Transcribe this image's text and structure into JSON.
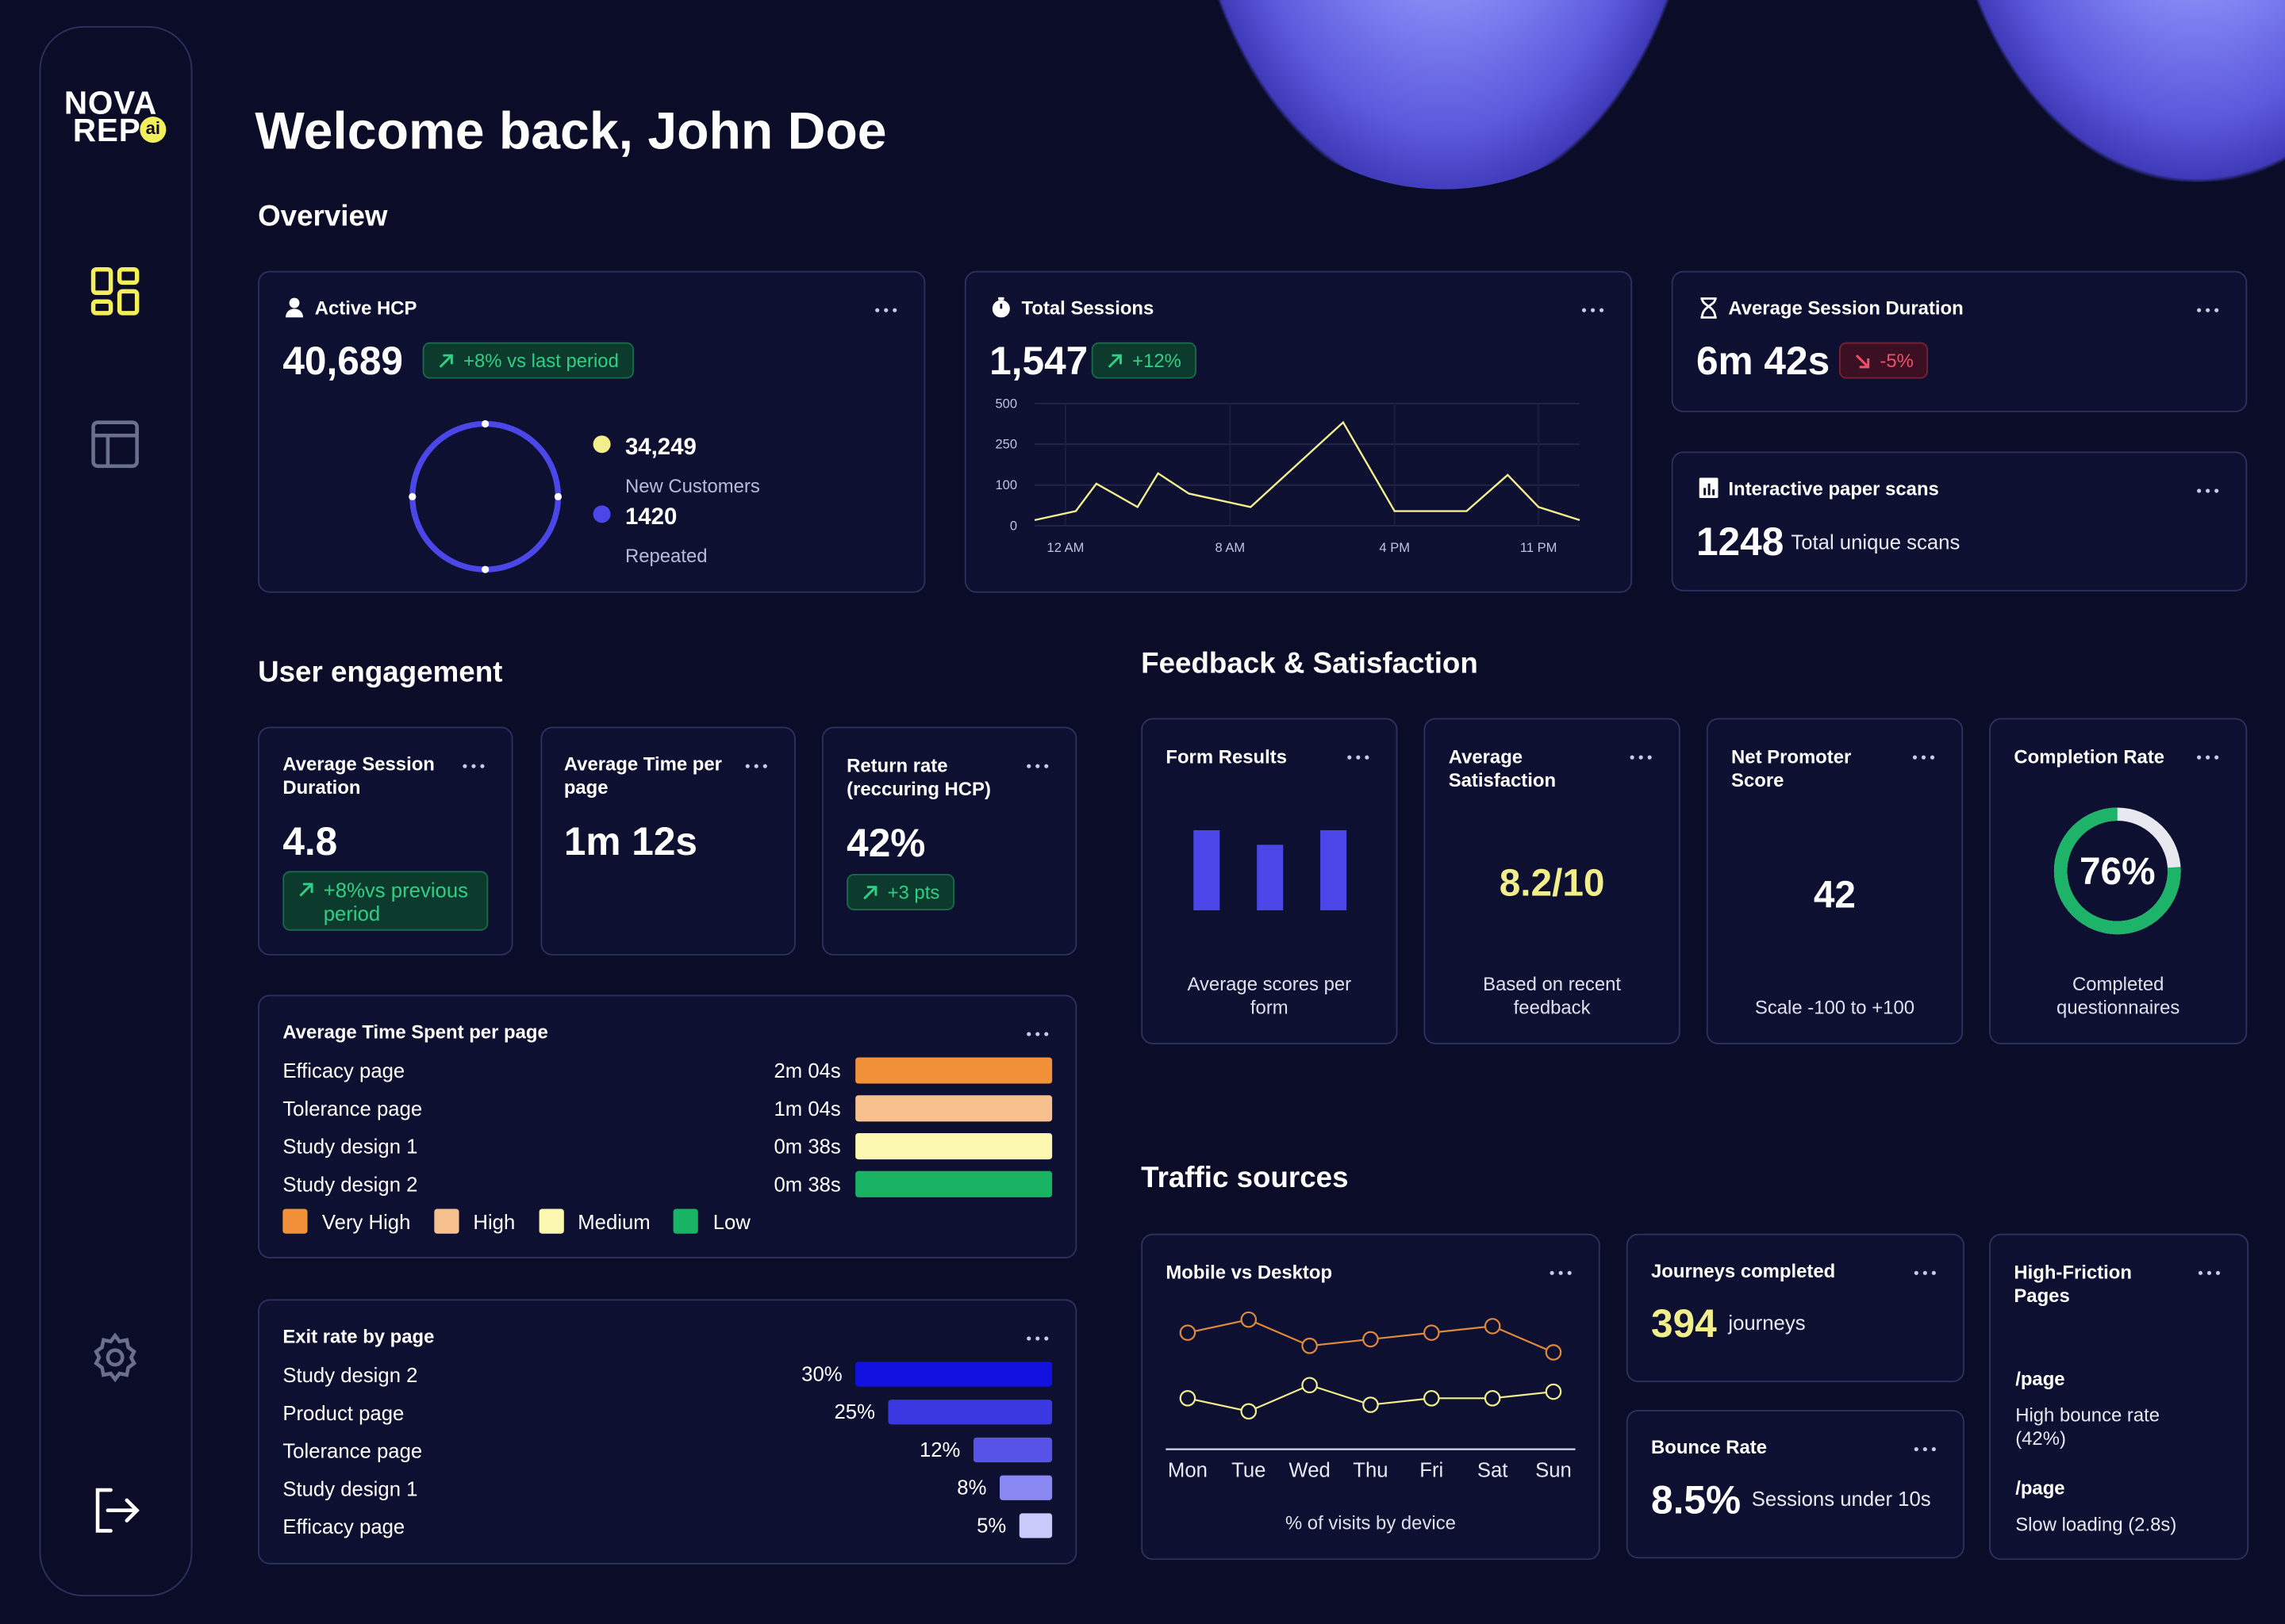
{
  "sidebar": {
    "logo_line1": "NOVA",
    "logo_line2": "REP",
    "logo_badge": "ai"
  },
  "header": {
    "title": "Welcome back, John Doe"
  },
  "overview": {
    "title": "Overview",
    "active_hcp": {
      "label": "Active HCP",
      "value": "40,689",
      "change": "+8% vs last period",
      "customers": [
        {
          "value": "34,249",
          "label": "New Customers",
          "color": "#f2ee8c"
        },
        {
          "value": "1420",
          "label": "Repeated",
          "color": "#4b46e8"
        }
      ]
    },
    "total_sessions": {
      "label": "Total Sessions",
      "value": "1,547",
      "change": "+12%",
      "chart_data": {
        "type": "line",
        "color": "#f2ee8c",
        "grid": true,
        "x": [
          -1.5,
          0.5,
          1.5,
          3.5,
          4.5,
          6,
          9,
          13.5,
          16,
          19.5,
          21.5,
          23,
          25
        ],
        "values": [
          14,
          36,
          105,
          46,
          143,
          79,
          46,
          384,
          36,
          36,
          137,
          46,
          14
        ],
        "xlim": [
          -1.5,
          25
        ],
        "xticks": [
          {
            "value": 0,
            "label": "12 AM"
          },
          {
            "value": 8,
            "label": "8 AM"
          },
          {
            "value": 16,
            "label": "4 PM"
          },
          {
            "value": 23,
            "label": "11 PM"
          }
        ],
        "ylim": [
          0,
          500
        ],
        "yticks": [
          0,
          100,
          250,
          500
        ]
      }
    },
    "avg_session_duration": {
      "label": "Average Session Duration",
      "value": "6m 42s",
      "change": "-5%"
    },
    "paper_scans": {
      "label": "Interactive paper scans",
      "value": "1248",
      "note": "Total unique scans"
    }
  },
  "engagement": {
    "title": "User engagement",
    "kpis": [
      {
        "label": "Average Session Duration",
        "value": "4.8",
        "change": "+8%vs previous period"
      },
      {
        "label": "Average Time per page",
        "value": "1m 12s"
      },
      {
        "label": "Return rate (reccuring HCP)",
        "value": "42%",
        "change": "+3 pts"
      }
    ],
    "time_spent": {
      "title": "Average Time Spent per page",
      "rows": [
        {
          "page": "Efficacy page",
          "time": "2m 04s",
          "color": "#f0913a"
        },
        {
          "page": "Tolerance page",
          "time": "1m 04s",
          "color": "#f7c08f"
        },
        {
          "page": "Study design 1",
          "time": "0m 38s",
          "color": "#fbf7b0"
        },
        {
          "page": "Study design 2",
          "time": "0m 38s",
          "color": "#19b463"
        }
      ],
      "legend": [
        {
          "name": "Very High",
          "color": "#f0913a"
        },
        {
          "name": "High",
          "color": "#f7c08f"
        },
        {
          "name": "Medium",
          "color": "#fbf7b0"
        },
        {
          "name": "Low",
          "color": "#19b463"
        }
      ]
    },
    "exit_rate": {
      "chart_data": {
        "type": "hbar",
        "title": "Exit rate by page",
        "categories": [
          "Study design 2",
          "Product page",
          "Tolerance page",
          "Study design 1",
          "Efficacy page"
        ],
        "values": [
          30,
          25,
          12,
          8,
          5
        ],
        "value_labels": [
          "30%",
          "25%",
          "12%",
          "8%",
          "5%"
        ],
        "colors": [
          "#1212e0",
          "#3b38e2",
          "#5753e8",
          "#8a88f2",
          "#cacafa"
        ]
      }
    }
  },
  "feedback": {
    "title": "Feedback & Satisfaction",
    "form_results": {
      "title": "Form Results",
      "caption": "Average scores per form",
      "chart_data": {
        "type": "bar",
        "values": [
          5.5,
          4.5,
          5.5
        ],
        "color": "#4b46e8"
      }
    },
    "avg_satisfaction": {
      "title": "Average Satisfaction",
      "value": "8.2/10",
      "caption": "Based on recent feedback"
    },
    "nps": {
      "title": "Net Promoter Score",
      "value": "42",
      "caption": "Scale -100 to +100"
    },
    "completion": {
      "title": "Completion Rate",
      "caption": "Completed questionnaires",
      "chart_data": {
        "type": "gauge",
        "value": 76,
        "value_label": "76%",
        "color": "#1db46a"
      }
    }
  },
  "traffic": {
    "title": "Traffic sources",
    "mobile_desktop": {
      "title": "Mobile vs Desktop",
      "caption": "% of visits by device",
      "chart_data": {
        "type": "line",
        "categories": [
          "Mon",
          "Tue",
          "Wed",
          "Thu",
          "Fri",
          "Sat",
          "Sun"
        ],
        "series": [
          {
            "color": "#e0893a",
            "values": [
              58,
              60,
              56,
              57,
              58,
              59,
              55
            ]
          },
          {
            "color": "#f2ee8c",
            "values": [
              48,
              46,
              50,
              47,
              48,
              48,
              49
            ]
          }
        ]
      }
    },
    "journeys": {
      "title": "Journeys completed",
      "value": "394",
      "unit": "journeys"
    },
    "bounce": {
      "title": "Bounce Rate",
      "value": "8.5%",
      "note": "Sessions under 10s"
    },
    "friction": {
      "title": "High-Friction Pages",
      "items": [
        {
          "page": "/page",
          "note": "High bounce rate (42%)"
        },
        {
          "page": "/page",
          "note": "Slow loading (2.8s)"
        }
      ]
    }
  }
}
